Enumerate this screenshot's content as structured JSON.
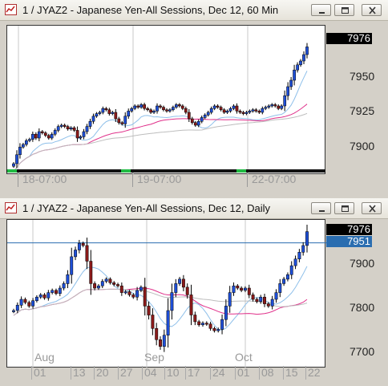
{
  "window1": {
    "title": "1 / JYAZ2 - Japanese Yen-All Sessions, Dec 12, 60 Min",
    "last_price": "7976",
    "y_ticks": [
      "7950",
      "7925",
      "7900"
    ],
    "x_labels": [
      "18-07:00",
      "19-07:00",
      "22-07:00"
    ]
  },
  "window2": {
    "title": "1 / JYAZ2 - Japanese Yen-All Sessions, Dec 12, Daily",
    "last_price": "7976",
    "line_price": "7951",
    "y_ticks": [
      "7900",
      "7800",
      "7700"
    ],
    "months": [
      "Aug",
      "Sep",
      "Oct"
    ],
    "days": [
      "01",
      "13",
      "20",
      "27",
      "04",
      "10",
      "17",
      "24",
      "01",
      "08",
      "15",
      "22"
    ]
  },
  "colors": {
    "up": "#1e4fd8",
    "down": "#8b1a1a",
    "ma_fast": "#8fc0ea",
    "ma_mid": "#e0308a",
    "ma_slow": "#bdbdbd",
    "session": "#22bb44",
    "hline": "#2a6db0"
  },
  "chart_data": [
    {
      "type": "candlestick",
      "title": "1 / JYAZ2 - Japanese Yen-All Sessions, Dec 12, 60 Min",
      "x_labels": [
        "18-07:00",
        "19-07:00",
        "22-07:00"
      ],
      "y_ticks": [
        7950,
        7925,
        7900
      ],
      "ylim": [
        7880,
        7990
      ],
      "close": [
        7885,
        7892,
        7898,
        7900,
        7903,
        7904,
        7908,
        7905,
        7910,
        7909,
        7907,
        7905,
        7908,
        7911,
        7914,
        7915,
        7914,
        7912,
        7913,
        7911,
        7905,
        7906,
        7910,
        7914,
        7918,
        7922,
        7924,
        7925,
        7928,
        7927,
        7924,
        7925,
        7920,
        7917,
        7916,
        7922,
        7926,
        7928,
        7930,
        7929,
        7931,
        7928,
        7927,
        7925,
        7926,
        7930,
        7929,
        7927,
        7926,
        7927,
        7929,
        7931,
        7930,
        7928,
        7925,
        7920,
        7917,
        7915,
        7918,
        7921,
        7923,
        7925,
        7928,
        7930,
        7929,
        7927,
        7925,
        7926,
        7928,
        7930,
        7926,
        7925,
        7924,
        7925,
        7926,
        7927,
        7926,
        7925,
        7928,
        7929,
        7930,
        7931,
        7930,
        7928,
        7930,
        7938,
        7945,
        7950,
        7958,
        7962,
        7965,
        7970,
        7976
      ]
    },
    {
      "type": "candlestick",
      "title": "1 / JYAZ2 - Japanese Yen-All Sessions, Dec 12, Daily",
      "months": [
        "Aug",
        "Sep",
        "Oct"
      ],
      "day_labels": [
        "01",
        "13",
        "20",
        "27",
        "04",
        "10",
        "17",
        "24",
        "01",
        "08",
        "15",
        "22"
      ],
      "y_ticks": [
        7900,
        7800,
        7700
      ],
      "ylim": [
        7680,
        7995
      ],
      "horizontal_line": 7951,
      "close": [
        7800,
        7812,
        7825,
        7818,
        7810,
        7822,
        7830,
        7835,
        7828,
        7840,
        7845,
        7838,
        7850,
        7860,
        7880,
        7920,
        7935,
        7950,
        7945,
        7910,
        7860,
        7850,
        7855,
        7865,
        7870,
        7862,
        7858,
        7855,
        7840,
        7842,
        7835,
        7830,
        7845,
        7852,
        7810,
        7790,
        7760,
        7735,
        7720,
        7745,
        7800,
        7840,
        7860,
        7870,
        7852,
        7835,
        7790,
        7775,
        7768,
        7772,
        7770,
        7760,
        7755,
        7758,
        7780,
        7810,
        7840,
        7855,
        7850,
        7845,
        7850,
        7835,
        7825,
        7820,
        7830,
        7815,
        7810,
        7825,
        7840,
        7860,
        7870,
        7880,
        7900,
        7915,
        7930,
        7945,
        7976
      ]
    }
  ]
}
